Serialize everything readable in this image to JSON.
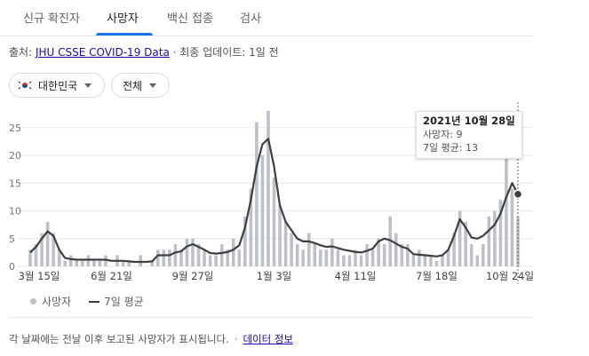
{
  "tabs": [
    {
      "label": "신규 확진자",
      "active": false
    },
    {
      "label": "사망자",
      "active": true
    },
    {
      "label": "백신 접종",
      "active": false
    },
    {
      "label": "검사",
      "active": false
    }
  ],
  "source": {
    "prefix": "출처: ",
    "link_text": "JHU CSSE COVID-19 Data",
    "suffix": " · 최종 업데이트: 1일 전"
  },
  "filters": {
    "country": {
      "label": "대한민국",
      "icon": "south-korea-flag-icon"
    },
    "range": {
      "label": "전체",
      "icon": "caret-down-icon"
    }
  },
  "tooltip": {
    "date": "2021년 10월 28일",
    "deaths_line": "사망자: 9",
    "avg_line": "7일 평균: 13"
  },
  "legend": {
    "deaths_label": "사망자",
    "avg_label": "7일 평균"
  },
  "footnote": {
    "text": "각 날짜에는 전날 이후 보고된 사망자가 표시됩니다.",
    "link_text": "데이터 정보"
  },
  "colors": {
    "bars": "#bdc1c6",
    "average_line": "#3c4043",
    "accent": "#1a73e8",
    "link": "#1a0dab"
  },
  "chart_data": {
    "type": "bar",
    "title": "",
    "xlabel": "",
    "ylabel": "",
    "ylim": [
      0,
      28
    ],
    "yticks": [
      0,
      5,
      10,
      15,
      20,
      25
    ],
    "x_tick_labels": [
      "3월 15일",
      "6월 21일",
      "9월 27일",
      "1월 3일",
      "4월 11일",
      "7월 18일",
      "10월 24일"
    ],
    "x_tick_index": [
      0,
      14,
      28,
      42,
      56,
      70,
      84
    ],
    "series": [
      {
        "name": "사망자",
        "kind": "bar",
        "values": [
          3,
          4,
          6,
          8,
          6,
          3,
          1,
          2,
          1,
          1,
          2,
          1,
          1,
          2,
          0,
          2,
          1,
          1,
          0,
          2,
          0,
          1,
          3,
          3,
          3,
          4,
          3,
          5,
          5,
          4,
          3,
          2,
          2,
          4,
          3,
          5,
          3,
          9,
          14,
          26,
          20,
          28,
          16,
          11,
          8,
          6,
          4,
          3,
          6,
          4,
          3,
          3,
          5,
          3,
          2,
          2,
          3,
          2,
          4,
          3,
          5,
          4,
          9,
          6,
          4,
          4,
          2,
          3,
          2,
          2,
          1,
          2,
          3,
          6,
          10,
          8,
          4,
          2,
          4,
          9,
          10,
          12,
          20,
          14,
          9
        ]
      },
      {
        "name": "7일 평균",
        "kind": "line",
        "values": [
          2.5,
          3.5,
          5,
          6.3,
          5.5,
          3,
          1.5,
          1.3,
          1.2,
          1.2,
          1.2,
          1.2,
          1.2,
          1.2,
          1,
          1,
          1,
          0.9,
          0.8,
          0.8,
          0.8,
          0.9,
          2,
          2,
          2,
          2.5,
          2.7,
          3.6,
          4,
          3.5,
          3,
          2.4,
          2.3,
          2.4,
          2.6,
          3,
          3.8,
          7,
          12,
          18,
          22,
          23,
          18,
          11,
          8,
          6.5,
          5,
          4.5,
          4.5,
          4.2,
          3.8,
          3.5,
          3.6,
          3.3,
          3,
          2.8,
          2.6,
          2.5,
          2.8,
          3.2,
          4.5,
          5,
          4.7,
          4.1,
          3.5,
          3.2,
          2.2,
          2.1,
          2,
          1.9,
          1.8,
          2,
          3,
          5.5,
          8.5,
          7,
          5.2,
          5,
          5.5,
          6.5,
          7.5,
          9.5,
          12.5,
          15,
          13
        ]
      }
    ],
    "highlight": {
      "index": 84,
      "deaths": 9,
      "average": 13
    }
  }
}
